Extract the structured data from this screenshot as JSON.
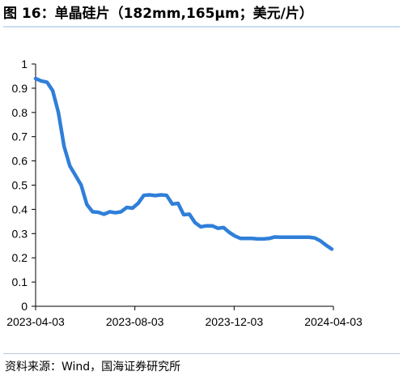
{
  "header": {
    "title": "图 16：单晶硅片（182mm,165μm；美元/片）"
  },
  "footer": {
    "source": "资料来源：Wind，国海证券研究所"
  },
  "colors": {
    "line": "#2f7fd9",
    "axis": "#000000"
  },
  "chart_data": {
    "type": "line",
    "title": "单晶硅片（182mm,165μm；美元/片）",
    "xlabel": "",
    "ylabel": "",
    "ylim": [
      0,
      1
    ],
    "yticks": [
      "0",
      "0.1",
      "0.2",
      "0.3",
      "0.4",
      "0.5",
      "0.6",
      "0.7",
      "0.8",
      "0.9",
      "1"
    ],
    "xticks": [
      "2023-04-03",
      "2023-08-03",
      "2023-12-03",
      "2024-04-03"
    ],
    "xlim": [
      "2023-04-03",
      "2024-04-03"
    ],
    "grid": false,
    "series": [
      {
        "name": "",
        "points": [
          [
            "2023-04-03",
            0.94
          ],
          [
            "2023-04-10",
            0.93
          ],
          [
            "2023-04-17",
            0.925
          ],
          [
            "2023-04-24",
            0.89
          ],
          [
            "2023-05-01",
            0.8
          ],
          [
            "2023-05-08",
            0.66
          ],
          [
            "2023-05-15",
            0.58
          ],
          [
            "2023-05-22",
            0.54
          ],
          [
            "2023-05-29",
            0.5
          ],
          [
            "2023-06-05",
            0.42
          ],
          [
            "2023-06-12",
            0.39
          ],
          [
            "2023-06-19",
            0.388
          ],
          [
            "2023-06-26",
            0.38
          ],
          [
            "2023-07-03",
            0.39
          ],
          [
            "2023-07-10",
            0.386
          ],
          [
            "2023-07-17",
            0.39
          ],
          [
            "2023-07-24",
            0.408
          ],
          [
            "2023-07-31",
            0.405
          ],
          [
            "2023-08-07",
            0.425
          ],
          [
            "2023-08-14",
            0.458
          ],
          [
            "2023-08-21",
            0.46
          ],
          [
            "2023-08-28",
            0.457
          ],
          [
            "2023-09-04",
            0.46
          ],
          [
            "2023-09-11",
            0.458
          ],
          [
            "2023-09-18",
            0.422
          ],
          [
            "2023-09-25",
            0.425
          ],
          [
            "2023-10-02",
            0.378
          ],
          [
            "2023-10-09",
            0.38
          ],
          [
            "2023-10-16",
            0.345
          ],
          [
            "2023-10-23",
            0.328
          ],
          [
            "2023-10-30",
            0.332
          ],
          [
            "2023-11-06",
            0.332
          ],
          [
            "2023-11-13",
            0.322
          ],
          [
            "2023-11-20",
            0.325
          ],
          [
            "2023-11-27",
            0.305
          ],
          [
            "2023-12-04",
            0.29
          ],
          [
            "2023-12-11",
            0.28
          ],
          [
            "2023-12-18",
            0.28
          ],
          [
            "2023-12-25",
            0.28
          ],
          [
            "2024-01-01",
            0.278
          ],
          [
            "2024-01-08",
            0.278
          ],
          [
            "2024-01-15",
            0.28
          ],
          [
            "2024-01-22",
            0.286
          ],
          [
            "2024-01-29",
            0.285
          ],
          [
            "2024-02-05",
            0.285
          ],
          [
            "2024-02-12",
            0.285
          ],
          [
            "2024-02-19",
            0.285
          ],
          [
            "2024-02-26",
            0.285
          ],
          [
            "2024-03-04",
            0.285
          ],
          [
            "2024-03-11",
            0.282
          ],
          [
            "2024-03-18",
            0.27
          ],
          [
            "2024-03-25",
            0.252
          ],
          [
            "2024-04-01",
            0.236
          ]
        ]
      }
    ]
  }
}
